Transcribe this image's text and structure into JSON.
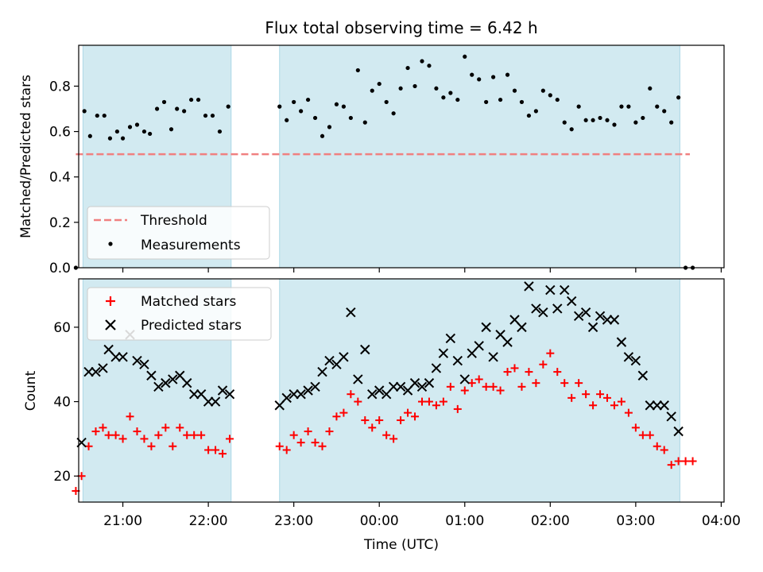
{
  "title": "Flux total observing time = 6.42 h",
  "colors": {
    "shade": "#add8e6",
    "threshold": "#f08080",
    "measurement": "#000000",
    "matched": "#ff0000",
    "predicted": "#000000"
  },
  "chart_data": [
    {
      "type": "scatter",
      "panel": "top",
      "ylabel": "Matched/Predicted stars",
      "ylim": [
        0,
        0.98
      ],
      "yticks": [
        "0.0",
        "0.2",
        "0.4",
        "0.6",
        "0.8"
      ],
      "xlim": [
        "20:29",
        "04:02"
      ],
      "grid": false,
      "legend_position": "lower-left",
      "shaded_intervals": [
        [
          "20:32",
          "22:16"
        ],
        [
          "22:50",
          "03:31"
        ]
      ],
      "threshold": {
        "name": "Threshold",
        "value": 0.5,
        "x_range": [
          "20:27",
          "03:38"
        ]
      },
      "series": [
        {
          "name": "Measurements",
          "points": [
            [
              "20:27",
              0.0
            ],
            [
              "20:33",
              0.69
            ],
            [
              "20:37",
              0.58
            ],
            [
              "20:42",
              0.67
            ],
            [
              "20:47",
              0.67
            ],
            [
              "20:51",
              0.57
            ],
            [
              "20:56",
              0.6
            ],
            [
              "21:00",
              0.57
            ],
            [
              "21:05",
              0.62
            ],
            [
              "21:10",
              0.63
            ],
            [
              "21:15",
              0.6
            ],
            [
              "21:19",
              0.59
            ],
            [
              "21:24",
              0.7
            ],
            [
              "21:29",
              0.73
            ],
            [
              "21:34",
              0.61
            ],
            [
              "21:38",
              0.7
            ],
            [
              "21:43",
              0.69
            ],
            [
              "21:48",
              0.74
            ],
            [
              "21:53",
              0.74
            ],
            [
              "21:58",
              0.67
            ],
            [
              "22:03",
              0.67
            ],
            [
              "22:08",
              0.6
            ],
            [
              "22:14",
              0.71
            ],
            [
              "22:50",
              0.71
            ],
            [
              "22:55",
              0.65
            ],
            [
              "23:00",
              0.73
            ],
            [
              "23:05",
              0.69
            ],
            [
              "23:10",
              0.74
            ],
            [
              "23:15",
              0.66
            ],
            [
              "23:20",
              0.58
            ],
            [
              "23:25",
              0.62
            ],
            [
              "23:30",
              0.72
            ],
            [
              "23:35",
              0.71
            ],
            [
              "23:40",
              0.66
            ],
            [
              "23:45",
              0.87
            ],
            [
              "23:50",
              0.64
            ],
            [
              "23:55",
              0.78
            ],
            [
              "00:00",
              0.81
            ],
            [
              "00:05",
              0.73
            ],
            [
              "00:10",
              0.68
            ],
            [
              "00:15",
              0.79
            ],
            [
              "00:20",
              0.88
            ],
            [
              "00:25",
              0.8
            ],
            [
              "00:30",
              0.91
            ],
            [
              "00:35",
              0.89
            ],
            [
              "00:40",
              0.79
            ],
            [
              "00:45",
              0.75
            ],
            [
              "00:50",
              0.77
            ],
            [
              "00:55",
              0.74
            ],
            [
              "01:00",
              0.93
            ],
            [
              "01:05",
              0.85
            ],
            [
              "01:10",
              0.83
            ],
            [
              "01:15",
              0.73
            ],
            [
              "01:20",
              0.84
            ],
            [
              "01:25",
              0.74
            ],
            [
              "01:30",
              0.85
            ],
            [
              "01:35",
              0.78
            ],
            [
              "01:40",
              0.73
            ],
            [
              "01:45",
              0.67
            ],
            [
              "01:50",
              0.69
            ],
            [
              "01:55",
              0.78
            ],
            [
              "02:00",
              0.76
            ],
            [
              "02:05",
              0.74
            ],
            [
              "02:10",
              0.64
            ],
            [
              "02:15",
              0.61
            ],
            [
              "02:20",
              0.71
            ],
            [
              "02:25",
              0.65
            ],
            [
              "02:30",
              0.65
            ],
            [
              "02:35",
              0.66
            ],
            [
              "02:40",
              0.65
            ],
            [
              "02:45",
              0.63
            ],
            [
              "02:50",
              0.71
            ],
            [
              "02:55",
              0.71
            ],
            [
              "03:00",
              0.64
            ],
            [
              "03:05",
              0.66
            ],
            [
              "03:10",
              0.79
            ],
            [
              "03:15",
              0.71
            ],
            [
              "03:20",
              0.69
            ],
            [
              "03:25",
              0.64
            ],
            [
              "03:30",
              0.75
            ],
            [
              "03:35",
              0.0
            ],
            [
              "03:40",
              0.0
            ]
          ]
        }
      ]
    },
    {
      "type": "scatter",
      "panel": "bottom",
      "xlabel": "Time (UTC)",
      "ylabel": "Count",
      "ylim": [
        13,
        73
      ],
      "yticks": [
        "20",
        "40",
        "60"
      ],
      "xticks": [
        "21:00",
        "22:00",
        "23:00",
        "00:00",
        "01:00",
        "02:00",
        "03:00",
        "04:00"
      ],
      "xlim": [
        "20:29",
        "04:02"
      ],
      "grid": false,
      "legend_position": "upper-left",
      "shaded_intervals": [
        [
          "20:32",
          "22:16"
        ],
        [
          "22:50",
          "03:31"
        ]
      ],
      "series": [
        {
          "name": "Matched stars",
          "marker": "plus",
          "points": [
            [
              "20:27",
              16
            ],
            [
              "20:31",
              20
            ],
            [
              "20:36",
              28
            ],
            [
              "20:41",
              32
            ],
            [
              "20:46",
              33
            ],
            [
              "20:50",
              31
            ],
            [
              "20:55",
              31
            ],
            [
              "21:00",
              30
            ],
            [
              "21:05",
              36
            ],
            [
              "21:10",
              32
            ],
            [
              "21:15",
              30
            ],
            [
              "21:20",
              28
            ],
            [
              "21:25",
              31
            ],
            [
              "21:30",
              33
            ],
            [
              "21:35",
              28
            ],
            [
              "21:40",
              33
            ],
            [
              "21:45",
              31
            ],
            [
              "21:50",
              31
            ],
            [
              "21:55",
              31
            ],
            [
              "22:00",
              27
            ],
            [
              "22:05",
              27
            ],
            [
              "22:10",
              26
            ],
            [
              "22:15",
              30
            ],
            [
              "22:50",
              28
            ],
            [
              "22:55",
              27
            ],
            [
              "23:00",
              31
            ],
            [
              "23:05",
              29
            ],
            [
              "23:10",
              32
            ],
            [
              "23:15",
              29
            ],
            [
              "23:20",
              28
            ],
            [
              "23:25",
              32
            ],
            [
              "23:30",
              36
            ],
            [
              "23:35",
              37
            ],
            [
              "23:40",
              42
            ],
            [
              "23:45",
              40
            ],
            [
              "23:50",
              35
            ],
            [
              "23:55",
              33
            ],
            [
              "00:00",
              35
            ],
            [
              "00:05",
              31
            ],
            [
              "00:10",
              30
            ],
            [
              "00:15",
              35
            ],
            [
              "00:20",
              37
            ],
            [
              "00:25",
              36
            ],
            [
              "00:30",
              40
            ],
            [
              "00:35",
              40
            ],
            [
              "00:40",
              39
            ],
            [
              "00:45",
              40
            ],
            [
              "00:50",
              44
            ],
            [
              "00:55",
              38
            ],
            [
              "01:00",
              43
            ],
            [
              "01:05",
              45
            ],
            [
              "01:10",
              46
            ],
            [
              "01:15",
              44
            ],
            [
              "01:20",
              44
            ],
            [
              "01:25",
              43
            ],
            [
              "01:30",
              48
            ],
            [
              "01:35",
              49
            ],
            [
              "01:40",
              44
            ],
            [
              "01:45",
              48
            ],
            [
              "01:50",
              45
            ],
            [
              "01:55",
              50
            ],
            [
              "02:00",
              53
            ],
            [
              "02:05",
              48
            ],
            [
              "02:10",
              45
            ],
            [
              "02:15",
              41
            ],
            [
              "02:20",
              45
            ],
            [
              "02:25",
              42
            ],
            [
              "02:30",
              39
            ],
            [
              "02:35",
              42
            ],
            [
              "02:40",
              41
            ],
            [
              "02:45",
              39
            ],
            [
              "02:50",
              40
            ],
            [
              "02:55",
              37
            ],
            [
              "03:00",
              33
            ],
            [
              "03:05",
              31
            ],
            [
              "03:10",
              31
            ],
            [
              "03:15",
              28
            ],
            [
              "03:20",
              27
            ],
            [
              "03:25",
              23
            ],
            [
              "03:30",
              24
            ],
            [
              "03:35",
              24
            ],
            [
              "03:40",
              24
            ]
          ]
        },
        {
          "name": "Predicted stars",
          "marker": "x",
          "points": [
            [
              "20:31",
              29
            ],
            [
              "20:36",
              48
            ],
            [
              "20:41",
              48
            ],
            [
              "20:46",
              49
            ],
            [
              "20:50",
              54
            ],
            [
              "20:55",
              52
            ],
            [
              "21:00",
              52
            ],
            [
              "21:05",
              58
            ],
            [
              "21:10",
              51
            ],
            [
              "21:15",
              50
            ],
            [
              "21:20",
              47
            ],
            [
              "21:25",
              44
            ],
            [
              "21:30",
              45
            ],
            [
              "21:35",
              46
            ],
            [
              "21:40",
              47
            ],
            [
              "21:45",
              45
            ],
            [
              "21:50",
              42
            ],
            [
              "21:55",
              42
            ],
            [
              "22:00",
              40
            ],
            [
              "22:05",
              40
            ],
            [
              "22:10",
              43
            ],
            [
              "22:15",
              42
            ],
            [
              "22:50",
              39
            ],
            [
              "22:55",
              41
            ],
            [
              "23:00",
              42
            ],
            [
              "23:05",
              42
            ],
            [
              "23:10",
              43
            ],
            [
              "23:15",
              44
            ],
            [
              "23:20",
              48
            ],
            [
              "23:25",
              51
            ],
            [
              "23:30",
              50
            ],
            [
              "23:35",
              52
            ],
            [
              "23:40",
              64
            ],
            [
              "23:45",
              46
            ],
            [
              "23:50",
              54
            ],
            [
              "23:55",
              42
            ],
            [
              "00:00",
              43
            ],
            [
              "00:05",
              42
            ],
            [
              "00:10",
              44
            ],
            [
              "00:15",
              44
            ],
            [
              "00:20",
              43
            ],
            [
              "00:25",
              45
            ],
            [
              "00:30",
              44
            ],
            [
              "00:35",
              45
            ],
            [
              "00:40",
              49
            ],
            [
              "00:45",
              53
            ],
            [
              "00:50",
              57
            ],
            [
              "00:55",
              51
            ],
            [
              "01:00",
              46
            ],
            [
              "01:05",
              53
            ],
            [
              "01:10",
              55
            ],
            [
              "01:15",
              60
            ],
            [
              "01:20",
              52
            ],
            [
              "01:25",
              58
            ],
            [
              "01:30",
              56
            ],
            [
              "01:35",
              62
            ],
            [
              "01:40",
              60
            ],
            [
              "01:45",
              71
            ],
            [
              "01:50",
              65
            ],
            [
              "01:55",
              64
            ],
            [
              "02:00",
              70
            ],
            [
              "02:05",
              65
            ],
            [
              "02:10",
              70
            ],
            [
              "02:15",
              67
            ],
            [
              "02:20",
              63
            ],
            [
              "02:25",
              64
            ],
            [
              "02:30",
              60
            ],
            [
              "02:35",
              63
            ],
            [
              "02:40",
              62
            ],
            [
              "02:45",
              62
            ],
            [
              "02:50",
              56
            ],
            [
              "02:55",
              52
            ],
            [
              "03:00",
              51
            ],
            [
              "03:05",
              47
            ],
            [
              "03:10",
              39
            ],
            [
              "03:15",
              39
            ],
            [
              "03:20",
              39
            ],
            [
              "03:25",
              36
            ],
            [
              "03:30",
              32
            ]
          ]
        }
      ]
    }
  ]
}
